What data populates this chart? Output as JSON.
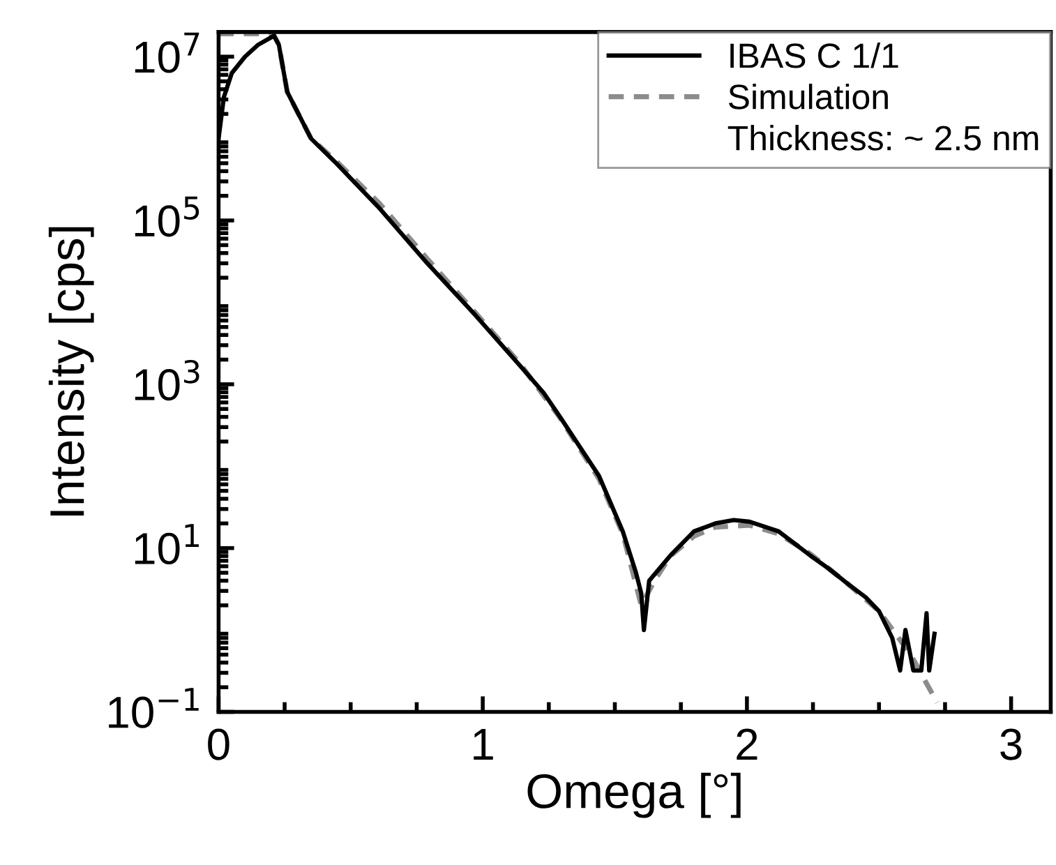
{
  "chart_data": {
    "type": "line",
    "xlabel": "Omega [°]",
    "ylabel": "Intensity [cps]",
    "log": "y",
    "xlim": [
      0,
      3.15
    ],
    "ylim": [
      0.1,
      20000000
    ],
    "xticks": [
      0,
      1,
      2,
      3
    ],
    "yticks": [
      {
        "value": 0.1,
        "label": "10$^{−1}$"
      },
      {
        "value": 10,
        "label": "10$^{1}$"
      },
      {
        "value": 1000,
        "label": "10$^{3}$"
      },
      {
        "value": 100000,
        "label": "10$^{5}$"
      },
      {
        "value": 10000000,
        "label": "10$^{7}$"
      }
    ],
    "grid": false,
    "legend": "top right",
    "marker": "none",
    "annotations": [
      "Thickness: ~ 2.5 nm"
    ],
    "series": [
      {
        "name": "IBAS C 1/1",
        "color": "#000000",
        "line_style": "solid",
        "x": [
          0,
          0.02,
          0.05,
          0.1,
          0.15,
          0.21,
          0.228,
          0.26,
          0.35,
          0.44,
          0.61,
          0.79,
          0.97,
          1.14,
          1.23,
          1.29,
          1.44,
          1.53,
          1.58,
          1.6,
          1.61,
          1.63,
          1.71,
          1.8,
          1.88,
          1.95,
          2.01,
          2.12,
          2.24,
          2.31,
          2.38,
          2.45,
          2.5,
          2.55,
          2.58,
          2.6,
          2.63,
          2.66,
          2.68,
          2.69,
          2.71
        ],
        "values": [
          1000000,
          3200000,
          6300000,
          10000000,
          14000000,
          18000000,
          14000000,
          3700000,
          1000000,
          520000,
          140000,
          30000,
          7100,
          1700,
          790,
          410,
          76,
          16,
          5,
          2.8,
          1.0,
          4.0,
          8.1,
          16,
          20,
          22,
          21,
          16,
          8.1,
          5.6,
          3.7,
          2.5,
          1.7,
          0.8,
          0.32,
          1.0,
          0.32,
          0.32,
          1.6,
          0.32,
          0.9
        ]
      },
      {
        "name": "Simulation",
        "color": "#8c8c8c",
        "line_style": "dashed",
        "x": [
          0,
          0.1,
          0.2,
          0.21,
          0.228,
          0.26,
          0.35,
          0.44,
          0.61,
          0.79,
          0.97,
          1.14,
          1.29,
          1.44,
          1.53,
          1.6,
          1.65,
          1.71,
          1.8,
          1.88,
          2.01,
          2.12,
          2.24,
          2.38,
          2.5,
          2.62,
          2.72
        ],
        "values": [
          19000000,
          19000000,
          19000000,
          18000000,
          14000000,
          3700000,
          1000000,
          550000,
          160000,
          34000,
          7600,
          1800,
          400,
          70,
          15,
          2.0,
          4.0,
          8,
          14,
          18,
          19,
          15,
          8.5,
          3.7,
          1.7,
          0.5,
          0.13
        ]
      }
    ]
  }
}
